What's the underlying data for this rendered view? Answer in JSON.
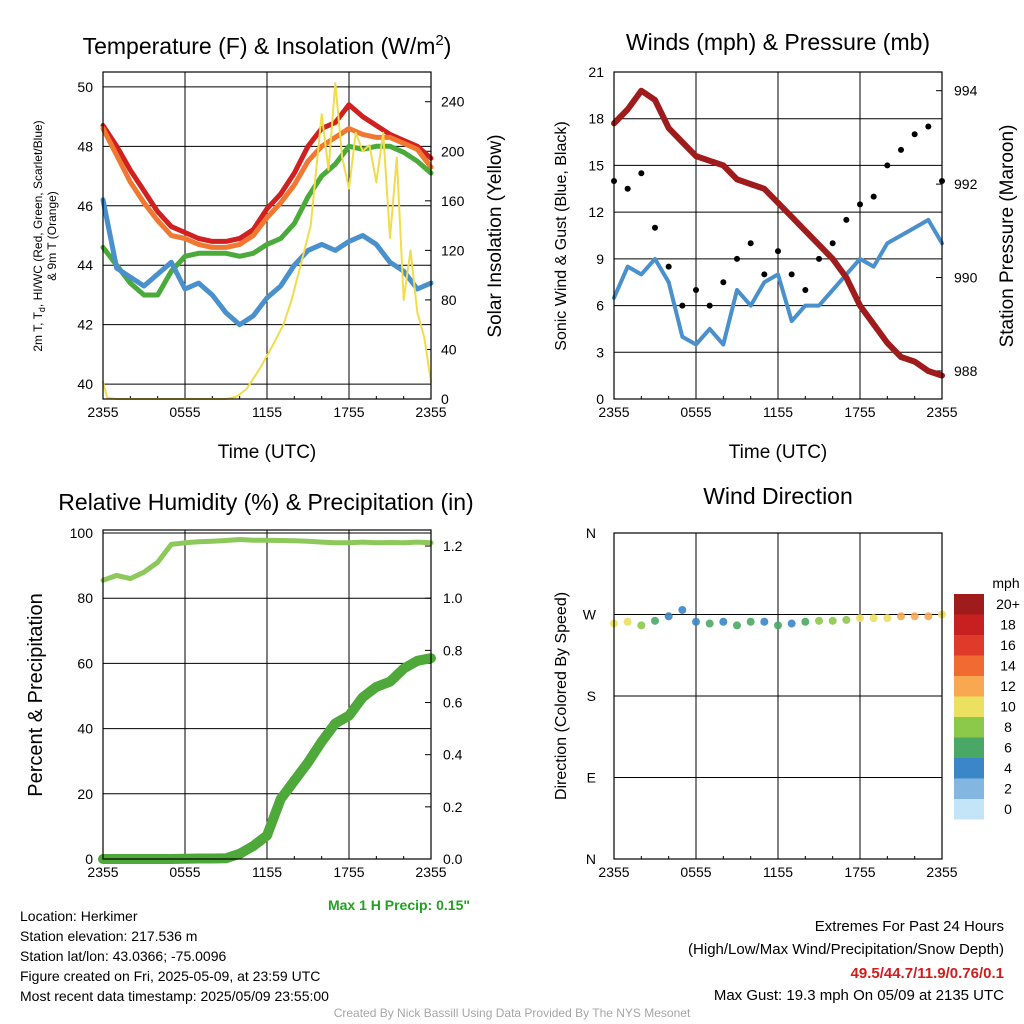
{
  "chart_data": [
    {
      "type": "line",
      "title": "Temperature (F) & Insolation (W/m",
      "title_superscript": "2",
      "title_suffix": ")",
      "xlabel": "Time (UTC)",
      "ylabel_lines": [
        "2m T, T",
        "d",
        ", HI/WC (Red, Green, Scarlet/Blue)",
        "& 9m T (Orange)"
      ],
      "y2label": "Solar Insolation (Yellow)",
      "x_ticks": [
        "2355",
        "0555",
        "1155",
        "1755",
        "2355"
      ],
      "ylim": [
        39.5,
        50.5
      ],
      "y_ticks": [
        "40",
        "42",
        "44",
        "46",
        "48",
        "50"
      ],
      "y2lim": [
        0,
        264
      ],
      "y2_ticks": [
        "0",
        "40",
        "80",
        "120",
        "160",
        "200",
        "240"
      ],
      "grid": true,
      "series": [
        {
          "name": "2m T",
          "axis": "left",
          "color": "#d02020",
          "x": [
            0,
            1,
            2,
            3,
            4,
            5,
            6,
            7,
            8,
            9,
            10,
            11,
            12,
            13,
            14,
            15,
            16,
            17,
            18,
            19,
            20,
            21,
            22,
            23,
            24
          ],
          "values": [
            48.7,
            48.0,
            47.2,
            46.5,
            45.8,
            45.3,
            45.1,
            44.9,
            44.8,
            44.8,
            44.9,
            45.2,
            45.9,
            46.4,
            47.1,
            48.0,
            48.6,
            48.8,
            49.4,
            49.0,
            48.7,
            48.4,
            48.2,
            48.0,
            47.6
          ]
        },
        {
          "name": "9m T",
          "axis": "left",
          "color": "#f07830",
          "x": [
            0,
            1,
            2,
            3,
            4,
            5,
            6,
            7,
            8,
            9,
            10,
            11,
            12,
            13,
            14,
            15,
            16,
            17,
            18,
            19,
            20,
            21,
            22,
            23,
            24
          ],
          "values": [
            48.6,
            47.7,
            46.8,
            46.1,
            45.5,
            45.0,
            44.9,
            44.7,
            44.6,
            44.6,
            44.7,
            45.0,
            45.6,
            46.1,
            46.7,
            47.5,
            48.0,
            48.3,
            48.6,
            48.4,
            48.3,
            48.3,
            48.1,
            47.9,
            47.3
          ]
        },
        {
          "name": "Td",
          "axis": "left",
          "color": "#4aaa3a",
          "x": [
            0,
            1,
            2,
            3,
            4,
            5,
            6,
            7,
            8,
            9,
            10,
            11,
            12,
            13,
            14,
            15,
            16,
            17,
            18,
            19,
            20,
            21,
            22,
            23,
            24
          ],
          "values": [
            44.6,
            44.0,
            43.4,
            43.0,
            43.0,
            43.8,
            44.3,
            44.4,
            44.4,
            44.4,
            44.3,
            44.4,
            44.7,
            44.9,
            45.4,
            46.3,
            47.0,
            47.4,
            48.0,
            47.9,
            48.0,
            48.0,
            47.8,
            47.5,
            47.1
          ]
        },
        {
          "name": "HI/WC",
          "axis": "left",
          "color": "#4a90cc",
          "x": [
            0,
            1,
            2,
            3,
            4,
            5,
            6,
            7,
            8,
            9,
            10,
            11,
            12,
            13,
            14,
            15,
            16,
            17,
            18,
            19,
            20,
            21,
            22,
            23,
            24
          ],
          "values": [
            46.2,
            43.9,
            43.6,
            43.3,
            43.7,
            44.1,
            43.2,
            43.4,
            43.0,
            42.4,
            42.0,
            42.3,
            42.9,
            43.3,
            44.0,
            44.5,
            44.7,
            44.5,
            44.8,
            45.0,
            44.7,
            44.1,
            43.8,
            43.2,
            43.4
          ]
        },
        {
          "name": "Solar Insolation",
          "axis": "right",
          "color": "#f2dc4a",
          "x": [
            0,
            0.3,
            1,
            3,
            5,
            7,
            9,
            9.8,
            10.5,
            11.5,
            12.5,
            13.2,
            13.8,
            14.5,
            15.2,
            16,
            16.5,
            17,
            17.5,
            18,
            18.5,
            19,
            19.5,
            20,
            20.5,
            21,
            21.5,
            22,
            22.5,
            23,
            23.5,
            24
          ],
          "values": [
            14,
            1,
            0,
            0,
            0,
            0,
            0,
            2,
            8,
            25,
            45,
            60,
            80,
            110,
            140,
            230,
            185,
            255,
            195,
            170,
            215,
            200,
            205,
            175,
            215,
            130,
            195,
            80,
            120,
            70,
            50,
            14
          ]
        }
      ]
    },
    {
      "type": "line",
      "title": "Winds (mph) & Pressure (mb)",
      "xlabel": "Time (UTC)",
      "ylabel": "Sonic Wind & Gust (Blue, Black)",
      "y2label": "Station Pressure (Maroon)",
      "x_ticks": [
        "2355",
        "0555",
        "1155",
        "1755",
        "2355"
      ],
      "ylim": [
        0,
        21
      ],
      "y_ticks": [
        "0",
        "3",
        "6",
        "9",
        "12",
        "15",
        "18",
        "21"
      ],
      "y2lim": [
        987.4,
        994.4
      ],
      "y2_ticks": [
        "988",
        "990",
        "992",
        "994"
      ],
      "grid": true,
      "series": [
        {
          "name": "Sonic Wind",
          "axis": "left",
          "color": "#4a90cc",
          "x": [
            0,
            1,
            2,
            3,
            4,
            5,
            6,
            7,
            8,
            9,
            10,
            11,
            12,
            13,
            14,
            15,
            16,
            17,
            18,
            19,
            20,
            21,
            22,
            23,
            24
          ],
          "values": [
            6.5,
            8.5,
            8.0,
            9.0,
            7.5,
            4.0,
            3.5,
            4.5,
            3.5,
            7.0,
            6.0,
            7.5,
            8.0,
            5.0,
            6.0,
            6.0,
            7.0,
            8.0,
            9.0,
            8.5,
            10.0,
            10.5,
            11.0,
            11.5,
            10.0
          ]
        },
        {
          "name": "Gust",
          "axis": "left",
          "color": "#000000",
          "x": [
            0,
            1,
            2,
            3,
            4,
            5,
            6,
            7,
            8,
            9,
            10,
            11,
            12,
            13,
            14,
            15,
            16,
            17,
            18,
            19,
            20,
            21,
            22,
            23,
            24
          ],
          "values": [
            14.0,
            13.5,
            14.5,
            11.0,
            8.5,
            6.0,
            7.0,
            6.0,
            7.5,
            9.0,
            10.0,
            8.0,
            9.5,
            8.0,
            7.0,
            9.0,
            10.0,
            11.5,
            12.5,
            13.0,
            15.0,
            16.0,
            17.0,
            17.5,
            14.0
          ]
        },
        {
          "name": "Station Pressure",
          "axis": "right",
          "color": "#a01c1c",
          "x": [
            0,
            1,
            2,
            3,
            4,
            5,
            6,
            7,
            8,
            9,
            10,
            11,
            12,
            13,
            14,
            15,
            16,
            17,
            18,
            19,
            20,
            21,
            22,
            23,
            24
          ],
          "values": [
            993.3,
            993.6,
            994.0,
            993.8,
            993.2,
            992.9,
            992.6,
            992.5,
            992.4,
            992.1,
            992.0,
            991.9,
            991.6,
            991.3,
            991.0,
            990.7,
            990.4,
            990.0,
            989.4,
            989.0,
            988.6,
            988.3,
            988.2,
            988.0,
            987.9
          ]
        }
      ]
    },
    {
      "type": "line",
      "title": "Relative Humidity (%) & Precipitation (in)",
      "ylabel": "Percent & Precipitation",
      "x_ticks": [
        "2355",
        "0555",
        "1155",
        "1755",
        "2355"
      ],
      "ylim": [
        0,
        100
      ],
      "y_ticks": [
        "0",
        "20",
        "40",
        "60",
        "80",
        "100"
      ],
      "y2lim": [
        0,
        1.25
      ],
      "y2_ticks": [
        "0.0",
        "0.2",
        "0.4",
        "0.6",
        "0.8",
        "1.0",
        "1.2"
      ],
      "grid": true,
      "annotation": "Max 1 H Precip: 0.15\"",
      "series": [
        {
          "name": "Relative Humidity",
          "axis": "left",
          "color": "#8cc85a",
          "x": [
            0,
            1,
            2,
            3,
            4,
            5,
            6,
            7,
            8,
            9,
            10,
            11,
            12,
            13,
            14,
            15,
            16,
            17,
            18,
            19,
            20,
            21,
            22,
            23,
            24
          ],
          "values": [
            85.5,
            87.0,
            86.0,
            88.0,
            91.0,
            96.5,
            97.0,
            97.3,
            97.5,
            97.7,
            98.0,
            97.8,
            97.8,
            97.7,
            97.6,
            97.5,
            97.2,
            97.0,
            97.0,
            97.2,
            97.0,
            97.1,
            97.0,
            97.2,
            97.0
          ]
        },
        {
          "name": "Precipitation",
          "axis": "right",
          "color": "#4fa83a",
          "x": [
            0,
            1,
            2,
            3,
            4,
            5,
            6,
            7,
            8,
            9,
            10,
            11,
            12,
            13,
            14,
            15,
            16,
            17,
            18,
            19,
            20,
            21,
            22,
            23,
            24
          ],
          "values": [
            0,
            0,
            0,
            0,
            0,
            0,
            0.001,
            0.002,
            0.002,
            0.003,
            0.02,
            0.05,
            0.09,
            0.23,
            0.3,
            0.37,
            0.45,
            0.52,
            0.55,
            0.62,
            0.66,
            0.68,
            0.73,
            0.76,
            0.77
          ]
        }
      ]
    },
    {
      "type": "scatter",
      "title": "Wind Direction",
      "ylabel": "Direction (Colored By Speed)",
      "x_ticks": [
        "2355",
        "0555",
        "1155",
        "1755",
        "2355"
      ],
      "y_ticks": [
        "E",
        "S",
        "W",
        "N",
        "N"
      ],
      "ylim": [
        0,
        360
      ],
      "grid": true,
      "legend_title": "mph",
      "legend_labels": [
        "20+",
        "18",
        "16",
        "14",
        "12",
        "10",
        "8",
        "6",
        "4",
        "2",
        "0"
      ],
      "legend_colors": [
        "#a01c1c",
        "#c82020",
        "#e03a2a",
        "#f06a32",
        "#f8a850",
        "#ece060",
        "#8cc84a",
        "#4aa866",
        "#3a86c6",
        "#84b6e2",
        "#c4e4f8"
      ],
      "legend_placement": "right",
      "series": [
        {
          "name": "Direction",
          "x": [
            0,
            1,
            2,
            3,
            4,
            5,
            6,
            7,
            8,
            9,
            10,
            11,
            12,
            13,
            14,
            15,
            16,
            17,
            18,
            19,
            20,
            21,
            22,
            23,
            24
          ],
          "values": [
            260,
            262,
            258,
            263,
            268,
            275,
            262,
            260,
            262,
            258,
            262,
            262,
            258,
            260,
            262,
            263,
            263,
            264,
            266,
            266,
            266,
            268,
            268,
            268,
            270
          ],
          "speeds": [
            10,
            9,
            7,
            6,
            4,
            3,
            4,
            5,
            4,
            5,
            6,
            4,
            5,
            4,
            6,
            7,
            7,
            8,
            9,
            10,
            10,
            11,
            11,
            12,
            10
          ]
        }
      ]
    }
  ],
  "info": {
    "location": "Location: Herkimer",
    "elevation": "Station elevation: 217.536 m",
    "latlon": "Station lat/lon: 43.0366; -75.0096",
    "created": "Figure created on Fri, 2025-05-09, at 23:59 UTC",
    "recent": "Most recent data timestamp: 2025/05/09 23:55:00"
  },
  "extremes": {
    "heading": "Extremes For Past 24 Hours",
    "subheading": "(High/Low/Max Wind/Precipitation/Snow Depth)",
    "values": "49.5/44.7/11.9/0.76/0.1",
    "gust": "Max Gust: 19.3 mph On 05/09 at 2135 UTC",
    "values_color": "#d01c1c"
  },
  "credit": "Created By Nick Bassill Using Data Provided By The NYS Mesonet",
  "annotation_color": "#22a022"
}
